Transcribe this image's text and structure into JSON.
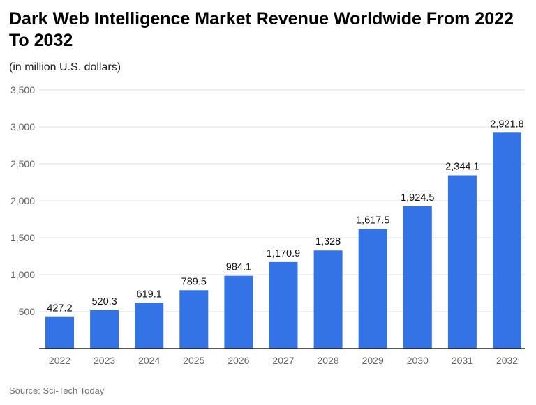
{
  "chart_data": {
    "type": "bar",
    "title": "Dark Web Intelligence Market Revenue Worldwide From 2022 To 2032",
    "subtitle": "(in million U.S. dollars)",
    "source": "Source: Sci-Tech Today",
    "categories": [
      "2022",
      "2023",
      "2024",
      "2025",
      "2026",
      "2027",
      "2028",
      "2029",
      "2030",
      "2031",
      "2032"
    ],
    "values": [
      427.2,
      520.3,
      619.1,
      789.5,
      984.1,
      1170.9,
      1328,
      1617.5,
      1924.5,
      2344.1,
      2921.8
    ],
    "data_labels": [
      "427.2",
      "520.3",
      "619.1",
      "789.5",
      "984.1",
      "1,170.9",
      "1,328",
      "1,617.5",
      "1,924.5",
      "2,344.1",
      "2,921.8"
    ],
    "ylim": [
      0,
      3500
    ],
    "yticks": [
      500,
      1000,
      1500,
      2000,
      2500,
      3000,
      3500
    ],
    "ytick_labels": [
      "500",
      "1,000",
      "1,500",
      "2,000",
      "2,500",
      "3,000",
      "3,500"
    ],
    "xlabel": "",
    "ylabel": "",
    "grid": true,
    "legend": "none",
    "bar_color": "#3473e5"
  }
}
